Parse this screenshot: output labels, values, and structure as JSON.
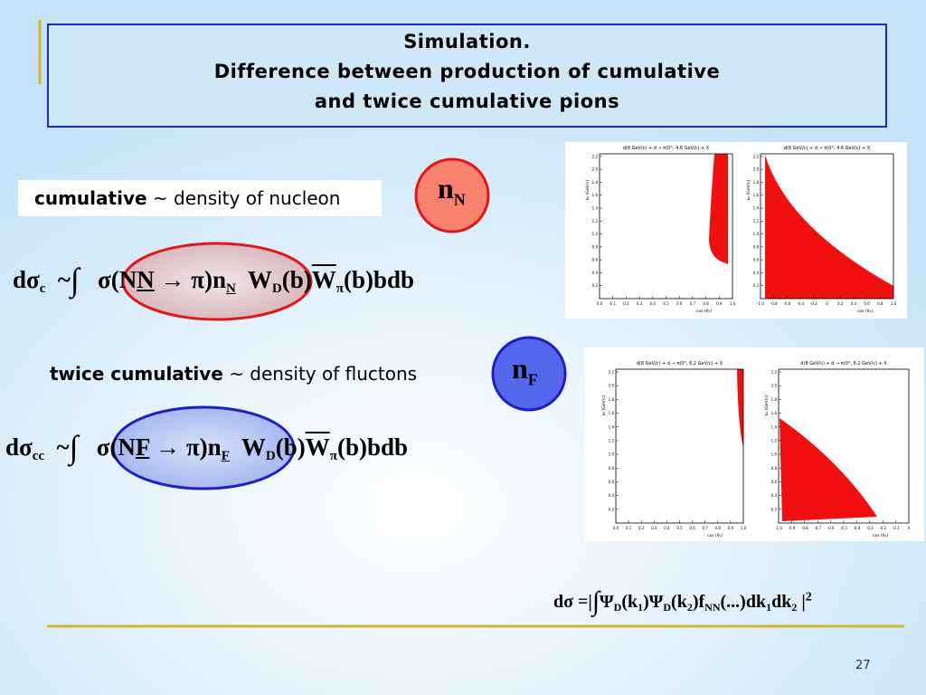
{
  "title": [
    "Simulation.",
    "Difference between production of cumulative",
    "and twice cumulative pions"
  ],
  "cumulative": {
    "term": "cumulative",
    "rest": "~ density of nucleon"
  },
  "twice": {
    "term": "twice cumulative",
    "rest": "~ density of fluctons"
  },
  "n_N": {
    "base": "n",
    "sub": "N"
  },
  "n_F": {
    "base": "n",
    "sub": "F"
  },
  "formula1": {
    "lhs": "dσ",
    "lhs_sub": "c",
    "rel": "~",
    "int": "∫",
    "sigma": "σ(N",
    "under": "N",
    "arrow": "→ π)n",
    "n_sub": "N",
    "w": "W",
    "w_sub": "D",
    "b1": "(b)",
    "wbar": "W",
    "wbar_sub": "π",
    "tail": "(b)bdb"
  },
  "formula2": {
    "lhs": "dσ",
    "lhs_sub": "cc",
    "rel": "~",
    "int": "∫",
    "sigma": "σ(N",
    "under": "F",
    "arrow": "→ π)n",
    "n_sub": "F",
    "w": "W",
    "w_sub": "D",
    "b1": "(b)",
    "wbar": "W",
    "wbar_sub": "π",
    "tail": "(b)bdb"
  },
  "formula3": {
    "lhs": "dσ =|",
    "int": "∫",
    "psi1": "Ψ",
    "psi1_sub": "D",
    "k1": "(k",
    "k1_sub": "1",
    "mid": ")Ψ",
    "psi2_sub": "D",
    "k2": "(k",
    "k2_sub": "2",
    "f": ")f",
    "f_sub": "NN",
    "dots": "(...)dk",
    "dk1_sub": "1",
    "dk2": "dk",
    "dk2_sub": "2",
    "end": "|",
    "power": "2"
  },
  "plots": [
    {
      "title": "d(8 GeV/c) + d → π(0°, 4.6 GeV/c) + X",
      "xlabel": "cos (θ₁)",
      "ylabel": "k₀ (GeV/c)",
      "xticks": [
        "0.0",
        "0.1",
        "0.2",
        "0.3",
        "0.4",
        "0.5",
        "0.6",
        "0.7",
        "0.8",
        "0.9",
        "1.0"
      ],
      "yticks": [
        "0.2",
        "0.4",
        "0.6",
        "0.8",
        "1.0",
        "1.2",
        "1.4",
        "1.6",
        "1.8",
        "2.0",
        "2.2"
      ]
    },
    {
      "title": "d(8 GeV/c) + d → π(0°, 4.6 GeV/c) + X",
      "xlabel": "cos (θ₁)",
      "ylabel": "k₀ (GeV/c)",
      "xticks": [
        "-1.0",
        "-0.8",
        "-0.6",
        "-0.4",
        "-0.2",
        "0",
        "0.2",
        "0.4",
        "0.6",
        "0.8",
        "1.0"
      ],
      "yticks": [
        "0.2",
        "0.4",
        "0.6",
        "0.8",
        "1.0",
        "1.2",
        "1.4",
        "1.6",
        "1.8",
        "2.0",
        "2.2"
      ]
    },
    {
      "title": "d(8 GeV/c) + d → π(0°, 6.2 GeV/c) + X",
      "xlabel": "cos (θ₁)",
      "ylabel": "k₀ (GeV/c)",
      "xticks": [
        "0.0",
        "0.1",
        "0.2",
        "0.3",
        "0.4",
        "0.5",
        "0.6",
        "0.7",
        "0.8",
        "0.9",
        "1.0"
      ],
      "yticks": [
        "0.2",
        "0.4",
        "0.6",
        "0.8",
        "1.0",
        "1.2",
        "1.4",
        "1.6",
        "1.8",
        "2.0",
        "2.2"
      ]
    },
    {
      "title": "d(8 GeV/c) + d → π(0°, 6.2 GeV/c) + X",
      "xlabel": "cos (θ₁)",
      "ylabel": "k₀ (GeV/c)",
      "xticks": [
        "-1.0",
        "-0.9",
        "-0.8",
        "-0.7",
        "-0.6",
        "-0.5",
        "-0.4",
        "-0.3",
        "-0.2",
        "-0.1",
        "0"
      ],
      "yticks": [
        "0.2",
        "0.4",
        "0.6",
        "0.8",
        "1.0",
        "1.2",
        "1.4",
        "1.6",
        "1.8",
        "2.0",
        "2.2"
      ]
    }
  ],
  "page_number": "27"
}
